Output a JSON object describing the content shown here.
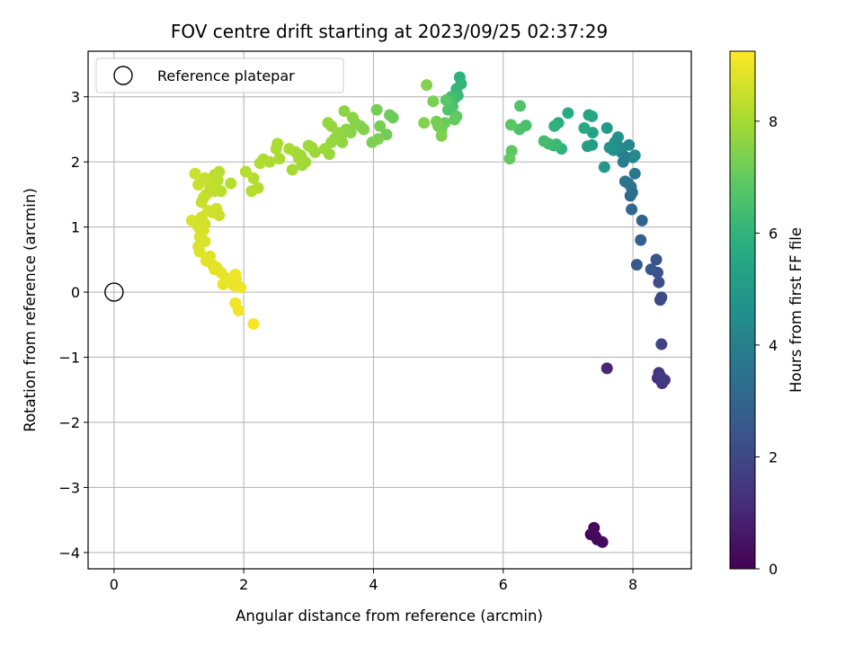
{
  "chart_data": {
    "type": "scatter",
    "title": "FOV centre drift starting at 2023/09/25 02:37:29",
    "xlabel": "Angular distance from reference (arcmin)",
    "ylabel": "Rotation from reference (arcmin)",
    "xlim": [
      -0.4,
      8.9
    ],
    "ylim": [
      -4.25,
      3.7
    ],
    "xticks": [
      "0",
      "2",
      "4",
      "6",
      "8"
    ],
    "yticks": [
      "−4",
      "−3",
      "−2",
      "−1",
      "0",
      "1",
      "2",
      "3"
    ],
    "grid": true,
    "legend": {
      "placement": "top-left",
      "entries": [
        "Reference platepar"
      ]
    },
    "reference_point": {
      "x": 0,
      "y": 0,
      "label": "Reference platepar"
    },
    "colorbar": {
      "label": "Hours from first FF file",
      "colormap": "viridis",
      "range": [
        0,
        9.25
      ],
      "ticks": [
        "0",
        "2",
        "4",
        "6",
        "8"
      ]
    },
    "points": [
      [
        7.35,
        -3.72,
        0.05
      ],
      [
        7.4,
        -3.62,
        0.1
      ],
      [
        7.42,
        -3.75,
        0.15
      ],
      [
        7.45,
        -3.8,
        0.2
      ],
      [
        7.53,
        -3.84,
        0.25
      ],
      [
        7.38,
        -3.7,
        0.3
      ],
      [
        7.6,
        -1.17,
        1.0
      ],
      [
        8.38,
        -1.32,
        1.2
      ],
      [
        8.4,
        -1.24,
        1.3
      ],
      [
        8.45,
        -1.4,
        1.4
      ],
      [
        8.49,
        -1.35,
        1.5
      ],
      [
        8.43,
        -1.3,
        1.6
      ],
      [
        8.44,
        -0.8,
        1.8
      ],
      [
        8.42,
        -0.12,
        2.0
      ],
      [
        8.44,
        -0.08,
        2.1
      ],
      [
        8.4,
        0.15,
        2.2
      ],
      [
        8.38,
        0.3,
        2.3
      ],
      [
        8.36,
        0.5,
        2.4
      ],
      [
        8.28,
        0.35,
        2.5
      ],
      [
        8.06,
        0.42,
        2.6
      ],
      [
        8.12,
        0.8,
        2.8
      ],
      [
        8.14,
        1.1,
        3.0
      ],
      [
        7.98,
        1.27,
        3.1
      ],
      [
        7.96,
        1.48,
        3.2
      ],
      [
        7.99,
        1.53,
        3.3
      ],
      [
        7.97,
        1.62,
        3.4
      ],
      [
        7.88,
        1.7,
        3.5
      ],
      [
        7.93,
        1.67,
        3.6
      ],
      [
        8.03,
        1.82,
        3.7
      ],
      [
        7.85,
        2.0,
        3.8
      ],
      [
        7.88,
        2.08,
        3.9
      ],
      [
        7.82,
        2.15,
        4.0
      ],
      [
        8.0,
        2.07,
        4.1
      ],
      [
        7.94,
        2.26,
        4.2
      ],
      [
        8.03,
        2.1,
        4.3
      ],
      [
        7.8,
        2.22,
        4.4
      ],
      [
        7.72,
        2.3,
        4.5
      ],
      [
        7.7,
        2.18,
        4.6
      ],
      [
        7.77,
        2.38,
        4.7
      ],
      [
        7.64,
        2.22,
        4.8
      ],
      [
        7.56,
        1.92,
        4.9
      ],
      [
        7.6,
        2.52,
        5.0
      ],
      [
        7.37,
        2.26,
        5.1
      ],
      [
        7.3,
        2.24,
        5.2
      ],
      [
        7.38,
        2.45,
        5.3
      ],
      [
        7.32,
        2.72,
        5.4
      ],
      [
        7.37,
        2.7,
        5.5
      ],
      [
        7.25,
        2.52,
        5.6
      ],
      [
        7.0,
        2.75,
        5.7
      ],
      [
        6.85,
        2.6,
        5.8
      ],
      [
        6.79,
        2.55,
        5.9
      ],
      [
        6.9,
        2.2,
        6.0
      ],
      [
        6.78,
        2.25,
        6.1
      ],
      [
        6.82,
        2.27,
        6.2
      ],
      [
        6.7,
        2.28,
        6.3
      ],
      [
        6.63,
        2.32,
        6.4
      ],
      [
        6.35,
        2.56,
        6.5
      ],
      [
        6.25,
        2.5,
        6.6
      ],
      [
        6.26,
        2.86,
        6.7
      ],
      [
        6.12,
        2.57,
        6.8
      ],
      [
        6.13,
        2.17,
        6.9
      ],
      [
        6.1,
        2.05,
        7.0
      ],
      [
        5.33,
        3.3,
        5.9
      ],
      [
        5.35,
        3.2,
        6.0
      ],
      [
        5.28,
        3.12,
        6.1
      ],
      [
        5.3,
        3.02,
        6.2
      ],
      [
        5.25,
        2.98,
        6.3
      ],
      [
        5.2,
        3.0,
        6.4
      ],
      [
        5.18,
        2.92,
        6.5
      ],
      [
        5.22,
        2.85,
        6.6
      ],
      [
        5.15,
        2.8,
        6.7
      ],
      [
        5.12,
        2.95,
        6.8
      ],
      [
        5.28,
        2.7,
        6.9
      ],
      [
        5.25,
        2.65,
        7.0
      ],
      [
        5.1,
        2.6,
        7.1
      ],
      [
        5.05,
        2.5,
        7.2
      ],
      [
        5.0,
        2.55,
        7.25
      ],
      [
        4.97,
        2.62,
        7.3
      ],
      [
        4.92,
        2.93,
        7.35
      ],
      [
        5.05,
        2.4,
        7.4
      ],
      [
        4.82,
        3.18,
        7.45
      ],
      [
        4.78,
        2.6,
        7.5
      ],
      [
        4.3,
        2.68,
        7.1
      ],
      [
        4.25,
        2.72,
        7.15
      ],
      [
        4.2,
        2.42,
        7.2
      ],
      [
        4.05,
        2.8,
        7.25
      ],
      [
        4.1,
        2.55,
        7.3
      ],
      [
        3.98,
        2.3,
        7.35
      ],
      [
        4.07,
        2.35,
        7.4
      ],
      [
        3.85,
        2.5,
        7.45
      ],
      [
        3.8,
        2.55,
        7.5
      ],
      [
        3.72,
        2.6,
        7.52
      ],
      [
        3.68,
        2.68,
        7.55
      ],
      [
        3.65,
        2.45,
        7.57
      ],
      [
        3.58,
        2.5,
        7.6
      ],
      [
        3.55,
        2.78,
        7.62
      ],
      [
        3.5,
        2.4,
        7.65
      ],
      [
        3.52,
        2.3,
        7.67
      ],
      [
        3.45,
        2.45,
        7.7
      ],
      [
        3.4,
        2.35,
        7.72
      ],
      [
        3.35,
        2.55,
        7.74
      ],
      [
        3.3,
        2.6,
        7.76
      ],
      [
        3.35,
        2.3,
        7.78
      ],
      [
        3.32,
        2.12,
        7.8
      ],
      [
        3.25,
        2.2,
        7.82
      ],
      [
        3.1,
        2.15,
        7.84
      ],
      [
        3.05,
        2.22,
        7.86
      ],
      [
        3.0,
        2.25,
        7.88
      ],
      [
        2.95,
        2.0,
        7.9
      ],
      [
        2.9,
        1.95,
        7.92
      ],
      [
        2.88,
        2.1,
        7.94
      ],
      [
        2.85,
        2.05,
        7.96
      ],
      [
        2.8,
        2.15,
        7.98
      ],
      [
        2.75,
        1.88,
        8.0
      ],
      [
        2.7,
        2.2,
        8.02
      ],
      [
        2.55,
        2.05,
        8.04
      ],
      [
        2.5,
        2.2,
        8.06
      ],
      [
        2.52,
        2.28,
        8.08
      ],
      [
        2.4,
        2.0,
        8.1
      ],
      [
        2.3,
        2.04,
        8.12
      ],
      [
        2.25,
        1.98,
        8.14
      ],
      [
        2.22,
        1.6,
        8.16
      ],
      [
        2.15,
        1.75,
        8.18
      ],
      [
        2.12,
        1.55,
        8.2
      ],
      [
        2.03,
        1.85,
        8.22
      ],
      [
        1.8,
        1.67,
        8.24
      ],
      [
        1.65,
        1.55,
        8.26
      ],
      [
        1.62,
        1.85,
        8.28
      ],
      [
        1.6,
        1.72,
        8.3
      ],
      [
        1.55,
        1.8,
        8.32
      ],
      [
        1.55,
        1.55,
        8.34
      ],
      [
        1.52,
        1.65,
        8.36
      ],
      [
        1.48,
        1.62,
        8.38
      ],
      [
        1.42,
        1.5,
        8.4
      ],
      [
        1.4,
        1.75,
        8.42
      ],
      [
        1.38,
        1.45,
        8.44
      ],
      [
        1.35,
        1.38,
        8.46
      ],
      [
        1.3,
        1.65,
        8.48
      ],
      [
        1.25,
        1.82,
        8.5
      ],
      [
        1.62,
        1.18,
        8.52
      ],
      [
        1.58,
        1.28,
        8.54
      ],
      [
        1.52,
        1.22,
        8.56
      ],
      [
        1.45,
        1.25,
        8.58
      ],
      [
        1.4,
        1.05,
        8.6
      ],
      [
        1.35,
        1.15,
        8.62
      ],
      [
        1.3,
        1.0,
        8.64
      ],
      [
        1.25,
        1.08,
        8.66
      ],
      [
        1.2,
        1.1,
        8.68
      ],
      [
        1.32,
        0.85,
        8.7
      ],
      [
        1.38,
        0.95,
        8.72
      ],
      [
        1.3,
        0.7,
        8.74
      ],
      [
        1.4,
        0.78,
        8.76
      ],
      [
        1.32,
        0.62,
        8.78
      ],
      [
        1.48,
        0.55,
        8.8
      ],
      [
        1.42,
        0.48,
        8.82
      ],
      [
        1.52,
        0.42,
        8.84
      ],
      [
        1.58,
        0.38,
        8.86
      ],
      [
        1.55,
        0.35,
        8.88
      ],
      [
        1.65,
        0.3,
        8.9
      ],
      [
        1.72,
        0.22,
        8.92
      ],
      [
        1.68,
        0.12,
        8.94
      ],
      [
        1.8,
        0.18,
        8.96
      ],
      [
        1.85,
        0.1,
        8.98
      ],
      [
        1.88,
        0.2,
        9.0
      ],
      [
        1.87,
        0.27,
        9.02
      ],
      [
        1.95,
        0.07,
        9.04
      ],
      [
        1.87,
        -0.17,
        9.06
      ],
      [
        1.92,
        -0.28,
        9.08
      ],
      [
        2.15,
        -0.49,
        9.15
      ]
    ]
  }
}
